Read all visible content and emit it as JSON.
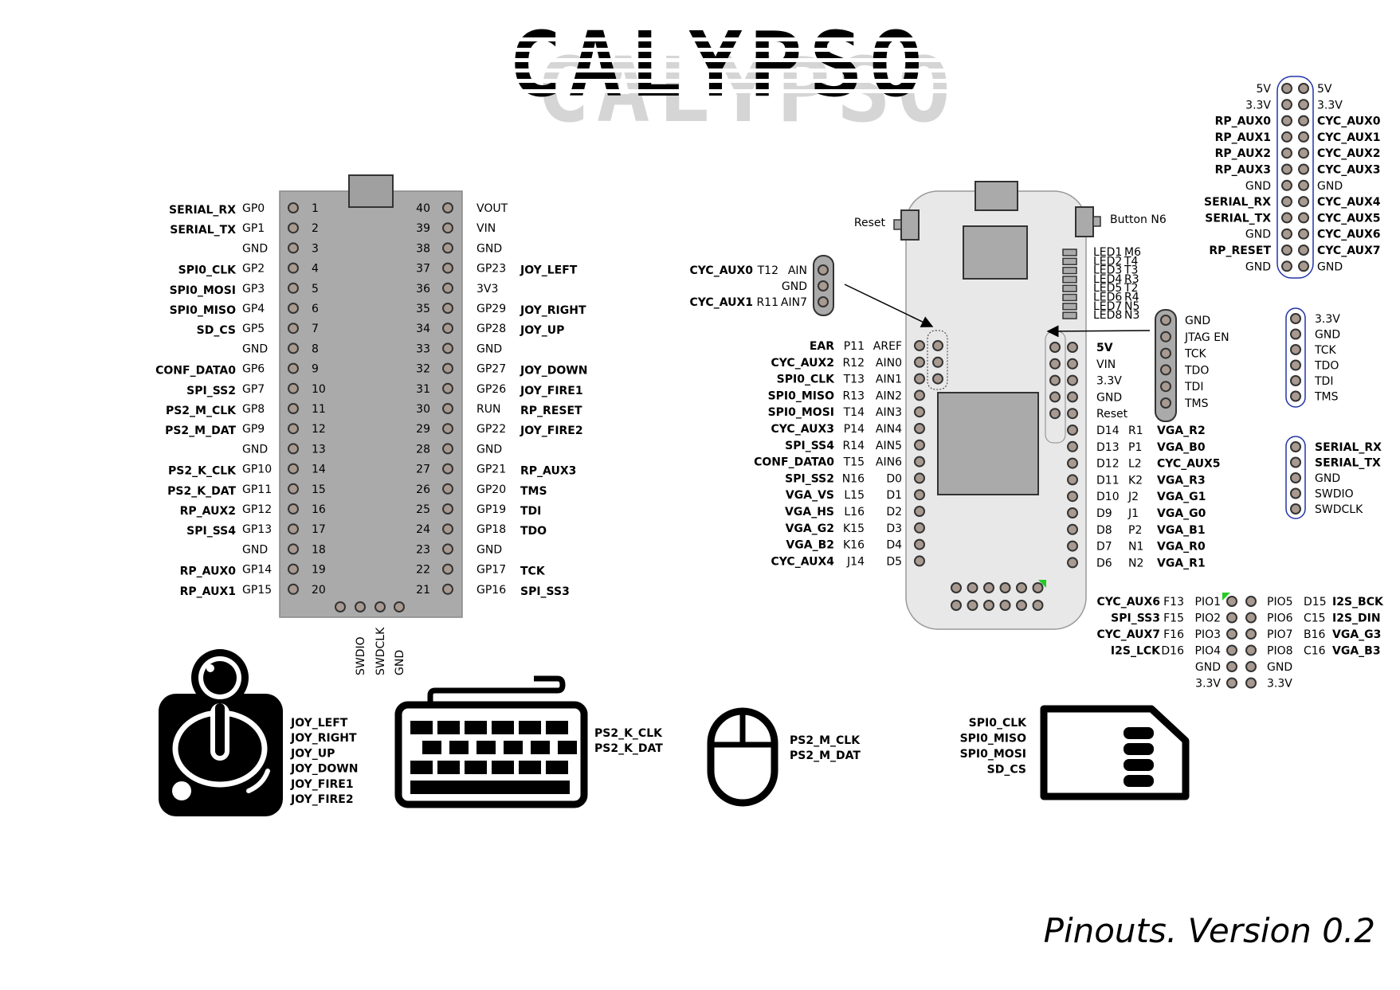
{
  "title": "CALYPSO",
  "footer": "Pinouts. Version 0.2",
  "colors": {
    "green": "#0a7a0a",
    "teal": "#138a8a",
    "purple": "#7a3a9a",
    "yellow": "#d4c31c",
    "red": "#dd1111",
    "navy": "#101080",
    "orange": "#e86a10",
    "magenta": "#e020d0",
    "black": "#000000"
  },
  "pico": {
    "debug_labels": [
      "SWDIO",
      "SWDCLK",
      "GND"
    ],
    "left": [
      {
        "n": "1",
        "gp": "GP0",
        "sig": "SERIAL_RX",
        "c": "green"
      },
      {
        "n": "2",
        "gp": "GP1",
        "sig": "SERIAL_TX",
        "c": "green"
      },
      {
        "n": "3",
        "gp": "GND",
        "sig": "",
        "c": ""
      },
      {
        "n": "4",
        "gp": "GP2",
        "sig": "SPI0_CLK",
        "c": "teal"
      },
      {
        "n": "5",
        "gp": "GP3",
        "sig": "SPI0_MOSI",
        "c": "teal"
      },
      {
        "n": "6",
        "gp": "GP4",
        "sig": "SPI0_MISO",
        "c": "teal"
      },
      {
        "n": "7",
        "gp": "GP5",
        "sig": "SD_CS",
        "c": "purple"
      },
      {
        "n": "8",
        "gp": "GND",
        "sig": "",
        "c": ""
      },
      {
        "n": "9",
        "gp": "GP6",
        "sig": "CONF_DATA0",
        "c": "purple"
      },
      {
        "n": "10",
        "gp": "GP7",
        "sig": "SPI_SS2",
        "c": "purple"
      },
      {
        "n": "11",
        "gp": "GP8",
        "sig": "PS2_M_CLK",
        "c": "purple"
      },
      {
        "n": "12",
        "gp": "GP9",
        "sig": "PS2_M_DAT",
        "c": "purple"
      },
      {
        "n": "13",
        "gp": "GND",
        "sig": "",
        "c": ""
      },
      {
        "n": "14",
        "gp": "GP10",
        "sig": "PS2_K_CLK",
        "c": "purple"
      },
      {
        "n": "15",
        "gp": "GP11",
        "sig": "PS2_K_DAT",
        "c": "purple"
      },
      {
        "n": "16",
        "gp": "GP12",
        "sig": "RP_AUX2",
        "c": "yellow"
      },
      {
        "n": "17",
        "gp": "GP13",
        "sig": "SPI_SS4",
        "c": "purple"
      },
      {
        "n": "18",
        "gp": "GND",
        "sig": "",
        "c": ""
      },
      {
        "n": "19",
        "gp": "GP14",
        "sig": "RP_AUX0",
        "c": "yellow"
      },
      {
        "n": "20",
        "gp": "GP15",
        "sig": "RP_AUX1",
        "c": "yellow"
      }
    ],
    "right": [
      {
        "n": "40",
        "gp": "VOUT",
        "sig": "",
        "c": ""
      },
      {
        "n": "39",
        "gp": "VIN",
        "sig": "",
        "c": ""
      },
      {
        "n": "38",
        "gp": "GND",
        "sig": "",
        "c": ""
      },
      {
        "n": "37",
        "gp": "GP23",
        "sig": "JOY_LEFT",
        "c": "purple"
      },
      {
        "n": "36",
        "gp": "3V3",
        "sig": "",
        "c": ""
      },
      {
        "n": "35",
        "gp": "GP29",
        "sig": "JOY_RIGHT",
        "c": "purple"
      },
      {
        "n": "34",
        "gp": "GP28",
        "sig": "JOY_UP",
        "c": "purple"
      },
      {
        "n": "33",
        "gp": "GND",
        "sig": "",
        "c": ""
      },
      {
        "n": "32",
        "gp": "GP27",
        "sig": "JOY_DOWN",
        "c": "purple"
      },
      {
        "n": "31",
        "gp": "GP26",
        "sig": "JOY_FIRE1",
        "c": "purple"
      },
      {
        "n": "30",
        "gp": "RUN",
        "sig": "RP_RESET",
        "c": "red"
      },
      {
        "n": "29",
        "gp": "GP22",
        "sig": "JOY_FIRE2",
        "c": "purple"
      },
      {
        "n": "28",
        "gp": "GND",
        "sig": "",
        "c": ""
      },
      {
        "n": "27",
        "gp": "GP21",
        "sig": "RP_AUX3",
        "c": "yellow"
      },
      {
        "n": "26",
        "gp": "GP20",
        "sig": "TMS",
        "c": "black"
      },
      {
        "n": "25",
        "gp": "GP19",
        "sig": "TDI",
        "c": "black"
      },
      {
        "n": "24",
        "gp": "GP18",
        "sig": "TDO",
        "c": "black"
      },
      {
        "n": "23",
        "gp": "GND",
        "sig": "",
        "c": ""
      },
      {
        "n": "22",
        "gp": "GP17",
        "sig": "TCK",
        "c": "black"
      },
      {
        "n": "21",
        "gp": "GP16",
        "sig": "SPI_SS3",
        "c": "purple"
      }
    ]
  },
  "fpga": {
    "reset_label": "Reset",
    "button_label": "Button N6",
    "leds": [
      {
        "name": "LED1",
        "pin": "M6"
      },
      {
        "name": "LED2",
        "pin": "T4"
      },
      {
        "name": "LED3",
        "pin": "T3"
      },
      {
        "name": "LED4",
        "pin": "R3"
      },
      {
        "name": "LED5",
        "pin": "T2"
      },
      {
        "name": "LED6",
        "pin": "R4"
      },
      {
        "name": "LED7",
        "pin": "N5"
      },
      {
        "name": "LED8",
        "pin": "N3"
      }
    ],
    "analog": [
      {
        "sig": "CYC_AUX0",
        "ball": "T12",
        "name": "AIN",
        "c": "yellow"
      },
      {
        "sig": "",
        "ball": "",
        "name": "GND",
        "c": ""
      },
      {
        "sig": "CYC_AUX1",
        "ball": "R11",
        "name": "AIN7",
        "c": "yellow"
      }
    ],
    "left": [
      {
        "sig": "EAR",
        "ball": "P11",
        "name": "AREF",
        "c": "orange"
      },
      {
        "sig": "CYC_AUX2",
        "ball": "R12",
        "name": "AIN0",
        "c": "yellow"
      },
      {
        "sig": "SPI0_CLK",
        "ball": "T13",
        "name": "AIN1",
        "c": "teal"
      },
      {
        "sig": "SPI0_MISO",
        "ball": "R13",
        "name": "AIN2",
        "c": "teal"
      },
      {
        "sig": "SPI0_MOSI",
        "ball": "T14",
        "name": "AIN3",
        "c": "teal"
      },
      {
        "sig": "CYC_AUX3",
        "ball": "P14",
        "name": "AIN4",
        "c": "yellow"
      },
      {
        "sig": "SPI_SS4",
        "ball": "R14",
        "name": "AIN5",
        "c": "purple"
      },
      {
        "sig": "CONF_DATA0",
        "ball": "T15",
        "name": "AIN6",
        "c": "purple"
      },
      {
        "sig": "SPI_SS2",
        "ball": "N16",
        "name": "D0",
        "c": "purple"
      },
      {
        "sig": "VGA_VS",
        "ball": "L15",
        "name": "D1",
        "c": "teal"
      },
      {
        "sig": "VGA_HS",
        "ball": "L16",
        "name": "D2",
        "c": "teal"
      },
      {
        "sig": "VGA_G2",
        "ball": "K15",
        "name": "D3",
        "c": "green"
      },
      {
        "sig": "VGA_B2",
        "ball": "K16",
        "name": "D4",
        "c": "navy"
      },
      {
        "sig": "CYC_AUX4",
        "ball": "J14",
        "name": "D5",
        "c": "yellow"
      }
    ],
    "right_power": [
      "5V",
      "VIN",
      "3.3V",
      "GND",
      "Reset"
    ],
    "right": [
      {
        "name": "D14",
        "ball": "R1",
        "sig": "VGA_R2",
        "c": "red"
      },
      {
        "name": "D13",
        "ball": "P1",
        "sig": "VGA_B0",
        "c": "navy"
      },
      {
        "name": "D12",
        "ball": "L2",
        "sig": "CYC_AUX5",
        "c": "yellow"
      },
      {
        "name": "D11",
        "ball": "K2",
        "sig": "VGA_R3",
        "c": "red"
      },
      {
        "name": "D10",
        "ball": "J2",
        "sig": "VGA_G1",
        "c": "green"
      },
      {
        "name": "D9",
        "ball": "J1",
        "sig": "VGA_G0",
        "c": "green"
      },
      {
        "name": "D8",
        "ball": "P2",
        "sig": "VGA_B1",
        "c": "navy"
      },
      {
        "name": "D7",
        "ball": "N1",
        "sig": "VGA_R0",
        "c": "red"
      },
      {
        "name": "D6",
        "ball": "N2",
        "sig": "VGA_R1",
        "c": "red"
      }
    ],
    "jtag_header": [
      "GND",
      "JTAG EN",
      "TCK",
      "TDO",
      "TDI",
      "TMS"
    ]
  },
  "aux_header": {
    "left": [
      {
        "t": "5V",
        "c": "black"
      },
      {
        "t": "3.3V",
        "c": "black"
      },
      {
        "t": "RP_AUX0",
        "c": "yellow"
      },
      {
        "t": "RP_AUX1",
        "c": "yellow"
      },
      {
        "t": "RP_AUX2",
        "c": "yellow"
      },
      {
        "t": "RP_AUX3",
        "c": "yellow"
      },
      {
        "t": "GND",
        "c": "black"
      },
      {
        "t": "SERIAL_RX",
        "c": "green"
      },
      {
        "t": "SERIAL_TX",
        "c": "green"
      },
      {
        "t": "GND",
        "c": "black"
      },
      {
        "t": "RP_RESET",
        "c": "red"
      },
      {
        "t": "GND",
        "c": "black"
      }
    ],
    "right": [
      {
        "t": "5V",
        "c": "black"
      },
      {
        "t": "3.3V",
        "c": "black"
      },
      {
        "t": "CYC_AUX0",
        "c": "yellow"
      },
      {
        "t": "CYC_AUX1",
        "c": "yellow"
      },
      {
        "t": "CYC_AUX2",
        "c": "yellow"
      },
      {
        "t": "CYC_AUX3",
        "c": "yellow"
      },
      {
        "t": "GND",
        "c": "black"
      },
      {
        "t": "CYC_AUX4",
        "c": "yellow"
      },
      {
        "t": "CYC_AUX5",
        "c": "yellow"
      },
      {
        "t": "CYC_AUX6",
        "c": "yellow"
      },
      {
        "t": "CYC_AUX7",
        "c": "yellow"
      },
      {
        "t": "GND",
        "c": "black"
      }
    ]
  },
  "jtag_small": [
    "3.3V",
    "GND",
    "TCK",
    "TDO",
    "TDI",
    "TMS"
  ],
  "serial_small": [
    {
      "t": "SERIAL_RX",
      "c": "green"
    },
    {
      "t": "SERIAL_TX",
      "c": "green"
    },
    {
      "t": "GND",
      "c": "black"
    },
    {
      "t": "SWDIO",
      "c": "black"
    },
    {
      "t": "SWDCLK",
      "c": "black"
    }
  ],
  "pio": {
    "rows": [
      {
        "ls": "CYC_AUX6",
        "lc": "yellow",
        "lb": "F13",
        "lp": "PIO1",
        "rp": "PIO5",
        "rb": "D15",
        "rs": "I2S_BCK",
        "rc": "magenta"
      },
      {
        "ls": "SPI_SS3",
        "lc": "purple",
        "lb": "F15",
        "lp": "PIO2",
        "rp": "PIO6",
        "rb": "C15",
        "rs": "I2S_DIN",
        "rc": "magenta"
      },
      {
        "ls": "CYC_AUX7",
        "lc": "yellow",
        "lb": "F16",
        "lp": "PIO3",
        "rp": "PIO7",
        "rb": "B16",
        "rs": "VGA_G3",
        "rc": "green"
      },
      {
        "ls": "I2S_LCK",
        "lc": "magenta",
        "lb": "D16",
        "lp": "PIO4",
        "rp": "PIO8",
        "rb": "C16",
        "rs": "VGA_B3",
        "rc": "navy"
      },
      {
        "ls": "",
        "lc": "",
        "lb": "",
        "lp": "GND",
        "rp": "GND",
        "rb": "",
        "rs": "",
        "rc": ""
      },
      {
        "ls": "",
        "lc": "",
        "lb": "",
        "lp": "3.3V",
        "rp": "3.3V",
        "rb": "",
        "rs": "",
        "rc": ""
      }
    ]
  },
  "devices": {
    "joystick": [
      "JOY_LEFT",
      "JOY_RIGHT",
      "JOY_UP",
      "JOY_DOWN",
      "JOY_FIRE1",
      "JOY_FIRE2"
    ],
    "keyboard": [
      "PS2_K_CLK",
      "PS2_K_DAT"
    ],
    "mouse": [
      "PS2_M_CLK",
      "PS2_M_DAT"
    ],
    "sdcard": [
      "SPI0_CLK",
      "SPI0_MISO",
      "SPI0_MOSI",
      "SD_CS"
    ]
  }
}
